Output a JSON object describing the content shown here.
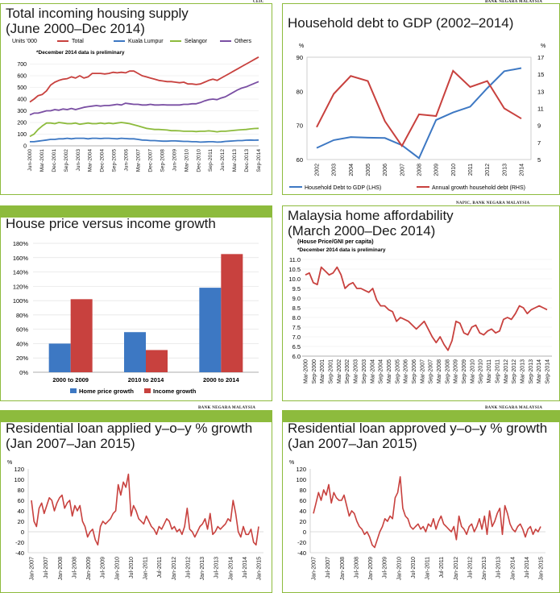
{
  "colors": {
    "red": "#c8413e",
    "blue": "#3d78c3",
    "green": "#8dbb3d",
    "purple": "#7a4fa3",
    "frame": "#8dbb3d"
  },
  "sources": {
    "p1": "CEIC",
    "p2": "BANK NEGARA MALAYSIA",
    "p3": "NAPIC, BANK NEGARA MALAYSIA",
    "p5": "BANK NEGARA MALAYSIA",
    "p6": "BANK NEGARA MALAYSIA"
  },
  "chart_data": [
    {
      "id": "p1",
      "type": "line",
      "title": "Total incoming housing supply (June 2000–Dec 2014)",
      "title_lines": [
        "Total incoming housing supply",
        "(June 2000–Dec 2014)"
      ],
      "units": "Units '000",
      "note": "*December 2014 data is preliminary",
      "ylim": [
        0,
        800
      ],
      "yticks": [
        "0",
        "100",
        "200",
        "300",
        "400",
        "500",
        "600",
        "700"
      ],
      "x_labels": [
        "Jun-2000",
        "Mar-2001",
        "Dec-2001",
        "Sep-2002",
        "Jun-2003",
        "Mar-2004",
        "Dec-2004",
        "Sep-2005",
        "Jun-2006",
        "Mar-2007",
        "Dec-2007",
        "Sep-2008",
        "Jun-2009",
        "Mar-2010",
        "Dec-2010",
        "Sep-2011",
        "Jun-2012",
        "Mar-2013",
        "Dec-2013",
        "Sep-2014"
      ],
      "series": [
        {
          "name": "Total",
          "color": "#c8413e",
          "values": [
            375,
            400,
            430,
            440,
            470,
            520,
            545,
            560,
            570,
            575,
            590,
            580,
            600,
            580,
            590,
            620,
            620,
            620,
            615,
            620,
            630,
            625,
            630,
            625,
            640,
            640,
            620,
            600,
            590,
            580,
            570,
            560,
            555,
            550,
            550,
            545,
            540,
            545,
            530,
            530,
            525,
            530,
            545,
            560,
            570,
            560,
            580,
            600,
            620,
            640,
            660,
            680,
            700,
            720,
            740,
            760
          ]
        },
        {
          "name": "Kuala Lumpur",
          "color": "#3d78c3",
          "values": [
            35,
            35,
            40,
            45,
            50,
            55,
            55,
            60,
            60,
            65,
            60,
            65,
            65,
            65,
            60,
            65,
            65,
            62,
            65,
            65,
            62,
            60,
            65,
            62,
            60,
            60,
            55,
            50,
            48,
            45,
            45,
            42,
            40,
            40,
            42,
            42,
            40,
            38,
            38,
            35,
            35,
            32,
            33,
            35,
            35,
            32,
            33,
            38,
            40,
            42,
            45,
            45,
            48,
            50,
            48,
            50
          ]
        },
        {
          "name": "Selangor",
          "color": "#8dbb3d",
          "values": [
            80,
            100,
            140,
            170,
            195,
            195,
            190,
            200,
            195,
            190,
            190,
            195,
            185,
            190,
            195,
            190,
            190,
            195,
            190,
            195,
            190,
            195,
            200,
            195,
            190,
            180,
            170,
            160,
            150,
            145,
            140,
            140,
            138,
            135,
            130,
            130,
            128,
            125,
            125,
            125,
            122,
            125,
            125,
            128,
            125,
            120,
            125,
            125,
            128,
            132,
            135,
            138,
            140,
            145,
            148,
            150
          ]
        },
        {
          "name": "Others",
          "color": "#7a4fa3",
          "values": [
            265,
            280,
            280,
            290,
            300,
            300,
            310,
            305,
            315,
            310,
            320,
            310,
            320,
            330,
            335,
            340,
            345,
            340,
            345,
            345,
            350,
            355,
            350,
            365,
            360,
            355,
            355,
            350,
            350,
            355,
            350,
            350,
            352,
            350,
            350,
            350,
            350,
            355,
            355,
            360,
            360,
            370,
            385,
            395,
            400,
            395,
            410,
            420,
            440,
            460,
            480,
            495,
            505,
            520,
            535,
            550
          ]
        }
      ]
    },
    {
      "id": "p2",
      "type": "line",
      "title": "Household debt to GDP (2002–2014)",
      "left_unit": "%",
      "right_unit": "%",
      "categories": [
        "2002",
        "2003",
        "2004",
        "2005",
        "2006",
        "2007",
        "2008",
        "2009",
        "2010",
        "2011",
        "2012",
        "2013",
        "2014"
      ],
      "ylim_left": [
        60,
        90
      ],
      "yticks_left": [
        "60",
        "70",
        "80",
        "90"
      ],
      "ylim_right": [
        5,
        17
      ],
      "yticks_right": [
        "5",
        "7",
        "9",
        "11",
        "13",
        "15",
        "17"
      ],
      "series": [
        {
          "name": "Household Debt to GDP  (LHS)",
          "axis": "left",
          "color": "#3d78c3",
          "values": [
            63.4,
            65.7,
            66.6,
            66.4,
            66.3,
            64.2,
            60.4,
            71.6,
            73.8,
            75.5,
            80.9,
            85.9,
            86.8
          ]
        },
        {
          "name": "Annual growth household debt (RHS)",
          "axis": "right",
          "color": "#c8413e",
          "values": [
            8.8,
            12.7,
            14.8,
            14.2,
            9.5,
            6.6,
            10.3,
            10.1,
            15.4,
            13.5,
            14.2,
            11.0,
            9.8
          ]
        }
      ]
    },
    {
      "id": "p3",
      "type": "bar",
      "title": "House price versus income growth",
      "categories": [
        "2000 to 2009",
        "2010 to 2014",
        "2000 to 2014"
      ],
      "ylim": [
        0,
        180
      ],
      "yticks": [
        "0%",
        "20%",
        "40%",
        "60%",
        "80%",
        "100%",
        "120%",
        "140%",
        "160%",
        "180%"
      ],
      "series": [
        {
          "name": "Home price growth",
          "color": "#3d78c3",
          "values": [
            40,
            56,
            118
          ]
        },
        {
          "name": "Income growth",
          "color": "#c8413e",
          "values": [
            102,
            31,
            165
          ]
        }
      ]
    },
    {
      "id": "p4",
      "type": "line",
      "title": "Malaysia home affordability (March 2000–Dec 2014)",
      "title_lines": [
        "Malaysia home affordability",
        "(March 2000–Dec 2014)"
      ],
      "units": "(House Price/GNI per capita)",
      "note": "*December 2014 data is preliminary",
      "ylim": [
        6.0,
        11.0
      ],
      "yticks": [
        "6.0",
        "6.5",
        "7.0",
        "7.5",
        "8.0",
        "8.5",
        "9.0",
        "9.5",
        "10.0",
        "10.5",
        "11.0"
      ],
      "x_labels": [
        "Mar-2000",
        "Sep-2000",
        "Mar-2001",
        "Sep-2001",
        "Mar-2002",
        "Sep-2002",
        "Mar-2003",
        "Sep-2003",
        "Mar-2004",
        "Sep-2004",
        "Mar-2005",
        "Sep-2005",
        "Mar-2006",
        "Sep-2006",
        "Mar-2007",
        "Sep-2007",
        "Mar-2008",
        "Sep-2008",
        "Mar-2009",
        "Sep-2009",
        "Mar-2010",
        "Sep-2010",
        "Mar-2011",
        "Sep-2011",
        "Mar-2012",
        "Sep-2012",
        "Mar-2013",
        "Sep-2013",
        "Mar-2014",
        "Sep-2014"
      ],
      "series": [
        {
          "name": "Affordability",
          "color": "#c8413e",
          "values": [
            10.2,
            10.3,
            9.8,
            9.7,
            10.6,
            10.4,
            10.2,
            10.3,
            10.6,
            10.2,
            9.5,
            9.7,
            9.8,
            9.5,
            9.5,
            9.4,
            9.3,
            9.5,
            8.9,
            8.6,
            8.6,
            8.4,
            8.3,
            7.8,
            8.0,
            7.9,
            7.8,
            7.6,
            7.4,
            7.6,
            7.8,
            7.4,
            7.0,
            6.7,
            7.0,
            6.6,
            6.3,
            6.8,
            7.8,
            7.7,
            7.2,
            7.1,
            7.5,
            7.6,
            7.2,
            7.1,
            7.3,
            7.4,
            7.2,
            7.3,
            7.9,
            8.0,
            7.9,
            8.2,
            8.6,
            8.5,
            8.2,
            8.4,
            8.5,
            8.6,
            8.5,
            8.4
          ]
        }
      ]
    },
    {
      "id": "p5",
      "type": "line",
      "title": "Residential loan applied y-o-y % growth (Jan 2007–Jan 2015)",
      "title_lines": [
        "Residential loan applied y–o–y % growth",
        "(Jan 2007–Jan 2015)"
      ],
      "unit": "%",
      "ylim": [
        -40,
        120
      ],
      "yticks": [
        "-40",
        "-20",
        "0",
        "20",
        "40",
        "60",
        "80",
        "100",
        "120"
      ],
      "x_labels": [
        "Jan-2007",
        "Jul-2007",
        "Jan-2008",
        "Jul-2008",
        "Jan-2009",
        "Jul-2009",
        "Jan-2010",
        "Jul-2010",
        "Jan-2011",
        "Jul-2011",
        "Jan-2012",
        "Jul-2012",
        "Jan-2013",
        "Jul-2013",
        "Jan-2014",
        "Jul-2014",
        "Jan-2015"
      ],
      "series": [
        {
          "name": "Applied",
          "color": "#c8413e",
          "values": [
            60,
            20,
            10,
            45,
            55,
            35,
            50,
            65,
            60,
            40,
            55,
            65,
            70,
            45,
            55,
            60,
            30,
            50,
            40,
            50,
            20,
            10,
            -10,
            0,
            5,
            -15,
            -25,
            10,
            20,
            15,
            20,
            25,
            35,
            40,
            90,
            70,
            95,
            85,
            110,
            30,
            50,
            40,
            25,
            20,
            15,
            30,
            20,
            10,
            5,
            -5,
            10,
            5,
            15,
            25,
            20,
            5,
            10,
            0,
            5,
            -5,
            10,
            45,
            5,
            0,
            -10,
            0,
            10,
            15,
            25,
            5,
            35,
            -5,
            0,
            10,
            5,
            10,
            15,
            25,
            20,
            60,
            35,
            0,
            -10,
            10,
            -5,
            -5,
            5,
            -20,
            -25,
            10
          ]
        }
      ]
    },
    {
      "id": "p6",
      "type": "line",
      "title": "Residential loan approved y-o-y % growth (Jan 2007–Jan 2015)",
      "title_lines": [
        "Residential loan approved y–o–y % growth",
        "(Jan 2007–Jan 2015)"
      ],
      "unit": "%",
      "ylim": [
        -40,
        120
      ],
      "yticks": [
        "-40",
        "-20",
        "0",
        "20",
        "40",
        "60",
        "80",
        "100",
        "120"
      ],
      "x_labels": [
        "Jan-2007",
        "Jul-2007",
        "Jan-2008",
        "Jul-2008",
        "Jan-2009",
        "Jul-2009",
        "Jan-2010",
        "Jul-2010",
        "Jan-2011",
        "Jul-2011",
        "Jan-2012",
        "Jul-2012",
        "Jan-2013",
        "Jul-2013",
        "Jan-2014",
        "Jul-2014",
        "Jan-2015"
      ],
      "series": [
        {
          "name": "Approved",
          "color": "#c8413e",
          "values": [
            35,
            55,
            75,
            60,
            80,
            70,
            90,
            55,
            75,
            65,
            60,
            60,
            70,
            50,
            30,
            40,
            35,
            20,
            10,
            5,
            -5,
            0,
            -10,
            -25,
            -30,
            -15,
            0,
            10,
            25,
            20,
            30,
            25,
            65,
            75,
            105,
            45,
            30,
            25,
            10,
            5,
            10,
            15,
            5,
            10,
            0,
            15,
            10,
            25,
            5,
            20,
            30,
            15,
            10,
            5,
            0,
            10,
            -15,
            30,
            10,
            5,
            -5,
            10,
            15,
            0,
            10,
            25,
            5,
            30,
            -5,
            40,
            10,
            20,
            35,
            45,
            -5,
            50,
            35,
            15,
            5,
            0,
            10,
            15,
            5,
            -10,
            5,
            10,
            -5,
            5,
            0,
            10
          ]
        }
      ]
    }
  ]
}
